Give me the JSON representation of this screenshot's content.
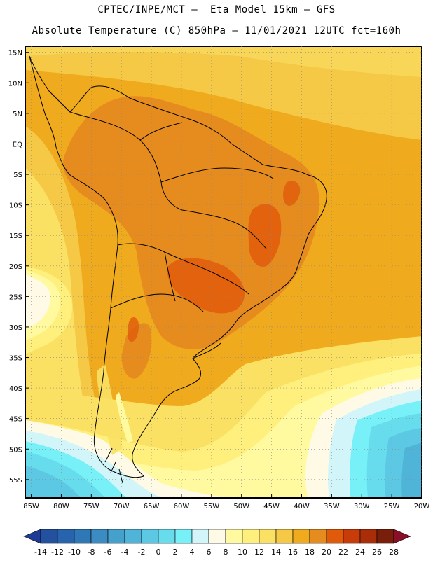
{
  "header": {
    "line1": "CPTEC/INPE/MCT –  Eta Model 15km – GFS",
    "line2": "Absolute Temperature (C) 850hPa – 11/01/2021 12UTC fct=160h"
  },
  "map": {
    "region": "South America",
    "lat_labels": [
      "15N",
      "10N",
      "5N",
      "EQ",
      "5S",
      "10S",
      "15S",
      "20S",
      "25S",
      "30S",
      "35S",
      "40S",
      "45S",
      "50S",
      "55S"
    ],
    "lon_labels": [
      "85W",
      "80W",
      "75W",
      "70W",
      "65W",
      "60W",
      "55W",
      "50W",
      "45W",
      "40W",
      "35W",
      "30W",
      "25W",
      "20W"
    ],
    "extent": {
      "lon_min": -86,
      "lon_max": -20,
      "lat_min": -58,
      "lat_max": 16
    },
    "grid": true
  },
  "colorbar": {
    "labels": [
      "-14",
      "-12",
      "-10",
      "-8",
      "-6",
      "-4",
      "-2",
      "0",
      "2",
      "4",
      "6",
      "8",
      "10",
      "12",
      "14",
      "16",
      "18",
      "20",
      "22",
      "24",
      "26",
      "28"
    ],
    "colors": [
      "#1e3c96",
      "#23509f",
      "#2864ad",
      "#2f78b8",
      "#3a8cc3",
      "#46a0cc",
      "#50b4d8",
      "#5cc8e4",
      "#66dcec",
      "#78f0f8",
      "#d2f5fa",
      "#fffae6",
      "#fffaa0",
      "#fff07d",
      "#fae164",
      "#f5c846",
      "#f0aa1e",
      "#e68c1e",
      "#e05a0a",
      "#c83c0a",
      "#aa2d0a",
      "#781e0a",
      "#8b0f28"
    ]
  }
}
